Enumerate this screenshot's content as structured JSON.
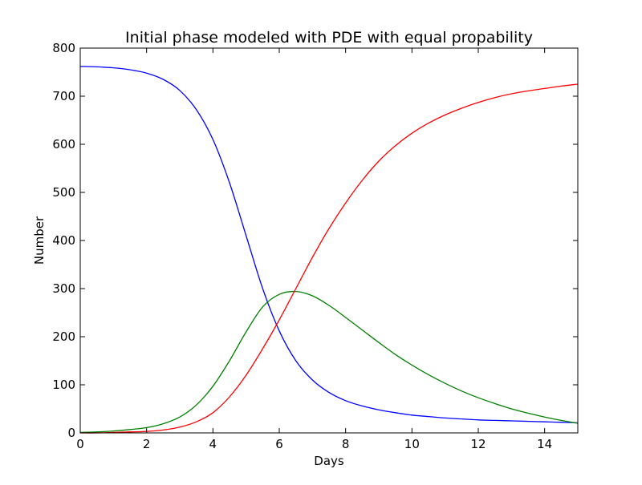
{
  "chart_data": {
    "type": "line",
    "title": "Initial phase modeled with PDE with equal propability",
    "xlabel": "Days",
    "ylabel": "Number",
    "xlim": [
      0,
      15
    ],
    "ylim": [
      0,
      800
    ],
    "xticks": [
      0,
      2,
      4,
      6,
      8,
      10,
      12,
      14
    ],
    "yticks": [
      0,
      100,
      200,
      300,
      400,
      500,
      600,
      700,
      800
    ],
    "grid": false,
    "legend": "none",
    "x": [
      0,
      0.5,
      1,
      1.5,
      2,
      2.5,
      3,
      3.5,
      4,
      4.5,
      5,
      5.5,
      6,
      6.5,
      7,
      7.5,
      8,
      8.5,
      9,
      9.5,
      10,
      10.5,
      11,
      11.5,
      12,
      12.5,
      13,
      13.5,
      14,
      14.5,
      15
    ],
    "series": [
      {
        "color": "#0000ff",
        "values": [
          762,
          761,
          759,
          755,
          748,
          735,
          712,
          672,
          610,
          520,
          410,
          300,
          212,
          150,
          110,
          84,
          67,
          56,
          48,
          42,
          37,
          34,
          31,
          29,
          27,
          26,
          25,
          24,
          23,
          22,
          21
        ]
      },
      {
        "color": "#008000",
        "values": [
          1,
          2,
          4,
          7,
          11,
          19,
          33,
          58,
          97,
          150,
          210,
          262,
          288,
          294,
          285,
          265,
          240,
          214,
          188,
          163,
          141,
          121,
          103,
          87,
          73,
          61,
          50,
          41,
          33,
          26,
          20
        ]
      },
      {
        "color": "#ff0000",
        "values": [
          0,
          0,
          1,
          2,
          3,
          6,
          12,
          23,
          42,
          75,
          120,
          175,
          235,
          300,
          365,
          425,
          478,
          525,
          565,
          597,
          623,
          644,
          661,
          675,
          687,
          697,
          705,
          711,
          716,
          721,
          725
        ]
      }
    ]
  }
}
